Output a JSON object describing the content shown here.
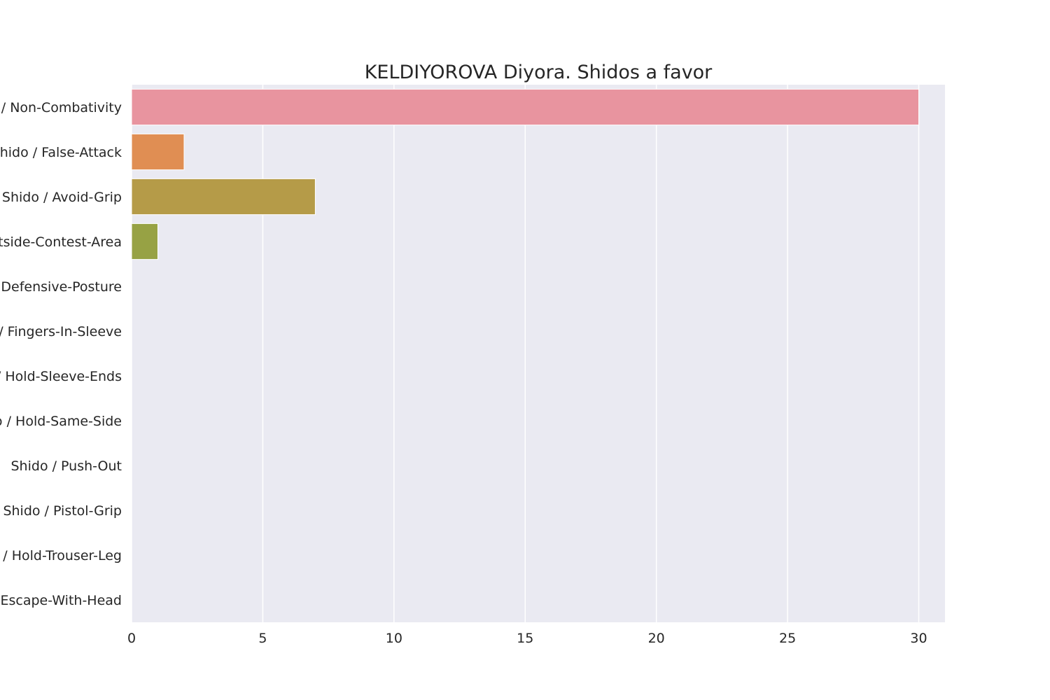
{
  "chart_data": {
    "type": "bar",
    "orientation": "horizontal",
    "title": "KELDIYOROVA Diyora. Shidos a favor",
    "categories": [
      "Shido / Non-Combativity",
      "Shido / False-Attack",
      "Shido / Avoid-Grip",
      "Shido / Outside-Contest-Area",
      "Shido / Defensive-Posture",
      "Shido / Fingers-In-Sleeve",
      "Shido / Hold-Sleeve-Ends",
      "Shido / Hold-Same-Side",
      "Shido / Push-Out",
      "Shido / Pistol-Grip",
      "Shido / Hold-Trouser-Leg",
      "Shido / Escape-With-Head"
    ],
    "values": [
      30,
      2,
      7,
      1,
      0,
      0,
      0,
      0,
      0,
      0,
      0,
      0
    ],
    "colors": [
      "#e8949f",
      "#e08e53",
      "#b59b48",
      "#97a244",
      "#5faf4a",
      "#4fae7e",
      "#4fad9e",
      "#55a9b6",
      "#5fa1cf",
      "#9b93e6",
      "#d183e2",
      "#e686c1"
    ],
    "xlim": [
      0,
      31
    ],
    "xticks": [
      0,
      5,
      10,
      15,
      20,
      25,
      30
    ],
    "xlabel": "",
    "ylabel": "",
    "grid": true,
    "background": "#eaeaf2"
  }
}
